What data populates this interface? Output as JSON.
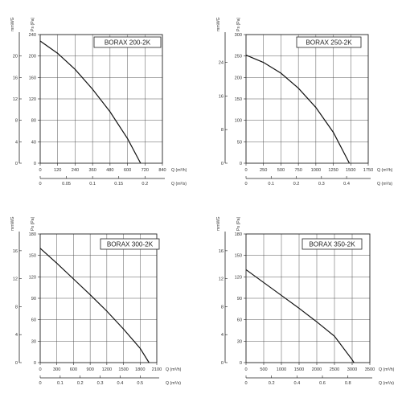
{
  "chart_data": [
    {
      "type": "line",
      "title": "BORAX  200-2K",
      "ylabel_left": "mmWG",
      "ylabel_right": "Ps (Pa)",
      "xlabel": "Q (m³/h)",
      "x2label": "Q (m³/s)",
      "xlim": [
        0,
        840
      ],
      "xticks": [
        "0",
        "120",
        "240",
        "360",
        "480",
        "600",
        "720",
        "840"
      ],
      "ylim": [
        0,
        240
      ],
      "yticks": [
        "0",
        "40",
        "80",
        "120",
        "160",
        "200",
        "240"
      ],
      "y2ticks": [
        "0",
        "4",
        "8",
        "12",
        "16",
        "20"
      ],
      "y2max": 24,
      "x2max": 0.2333,
      "x2ticks": [
        "0",
        "0.05",
        "0.1",
        "0.15",
        "0.2"
      ],
      "grid": true,
      "series": [
        {
          "x": [
            0,
            120,
            240,
            360,
            480,
            600,
            690
          ],
          "y": [
            228,
            205,
            175,
            138,
            96,
            46,
            0
          ]
        }
      ]
    },
    {
      "type": "line",
      "title": "BORAX 250-2K",
      "ylabel_left": "mmWG",
      "ylabel_right": "Ps (Pa)",
      "xlabel": "Q (m³/h)",
      "x2label": "Q (m³/s)",
      "xlim": [
        0,
        1750
      ],
      "xticks": [
        "0",
        "250",
        "500",
        "750",
        "1000",
        "1250",
        "1500",
        "1750"
      ],
      "ylim": [
        0,
        300
      ],
      "yticks": [
        "0",
        "50",
        "100",
        "150",
        "200",
        "250",
        "300"
      ],
      "y2ticks": [
        "0",
        "8",
        "16",
        "24"
      ],
      "y2max": 30.6,
      "x2max": 0.4861,
      "x2ticks": [
        "0",
        "0.1",
        "0.2",
        "0.3",
        "0.4"
      ],
      "grid": true,
      "series": [
        {
          "x": [
            0,
            250,
            500,
            750,
            1000,
            1250,
            1480
          ],
          "y": [
            252,
            235,
            210,
            175,
            130,
            72,
            0
          ]
        }
      ]
    },
    {
      "type": "line",
      "title": "BORAX 300-2K",
      "ylabel_left": "mmWG",
      "ylabel_right": "Ps (Pa)",
      "xlabel": "Q (m³/h)",
      "x2label": "Q (m³/s)",
      "xlim": [
        0,
        2100
      ],
      "xticks": [
        "0",
        "300",
        "600",
        "900",
        "1200",
        "1500",
        "1800",
        "2100"
      ],
      "ylim": [
        0,
        180
      ],
      "yticks": [
        "0",
        "30",
        "60",
        "90",
        "120",
        "150",
        "180"
      ],
      "y2ticks": [
        "0",
        "4",
        "8",
        "12",
        "16"
      ],
      "y2max": 18.4,
      "x2max": 0.5833,
      "x2ticks": [
        "0",
        "0.1",
        "0.2",
        "0.3",
        "0.4",
        "0.5"
      ],
      "grid": true,
      "series": [
        {
          "x": [
            0,
            300,
            600,
            900,
            1200,
            1500,
            1800,
            1960
          ],
          "y": [
            160,
            139,
            117,
            95,
            72,
            47,
            20,
            0
          ]
        }
      ]
    },
    {
      "type": "line",
      "title": "BORAX 350-2K",
      "ylabel_left": "mmWG",
      "ylabel_right": "Ps (Pa)",
      "xlabel": "Q (m³/h)",
      "x2label": "Q (m³/s)",
      "xlim": [
        0,
        3500
      ],
      "xticks": [
        "0",
        "500",
        "1000",
        "1500",
        "2000",
        "2500",
        "3000",
        "3500"
      ],
      "ylim": [
        0,
        180
      ],
      "yticks": [
        "0",
        "30",
        "60",
        "90",
        "120",
        "150",
        "180"
      ],
      "y2ticks": [
        "0",
        "4",
        "8",
        "12",
        "16"
      ],
      "y2max": 18.4,
      "x2max": 0.9722,
      "x2ticks": [
        "0",
        "0.2",
        "0.4",
        "0.6",
        "0.8"
      ],
      "grid": true,
      "series": [
        {
          "x": [
            0,
            500,
            1000,
            1500,
            2000,
            2500,
            3000,
            3050
          ],
          "y": [
            130,
            112,
            94,
            76,
            57,
            37,
            4,
            0
          ]
        }
      ]
    }
  ]
}
